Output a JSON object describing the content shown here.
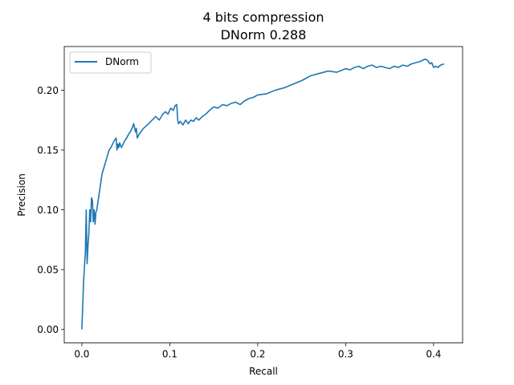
{
  "chart_data": {
    "type": "line",
    "title": "4 bits compression",
    "subtitle": "DNorm 0.288",
    "xlabel": "Recall",
    "ylabel": "Precision",
    "xlim": [
      -0.02,
      0.433
    ],
    "ylim": [
      -0.0113,
      0.2365
    ],
    "xticks": [
      0.0,
      0.1,
      0.2,
      0.3,
      0.4
    ],
    "xtick_labels": [
      "0.0",
      "0.1",
      "0.2",
      "0.3",
      "0.4"
    ],
    "yticks": [
      0.0,
      0.05,
      0.1,
      0.15,
      0.2
    ],
    "ytick_labels": [
      "0.00",
      "0.05",
      "0.10",
      "0.15",
      "0.20"
    ],
    "grid": false,
    "legend_position": "top-left",
    "series": [
      {
        "name": "DNorm",
        "color": "#1f77b4",
        "x": [
          0.0,
          0.002,
          0.004,
          0.005,
          0.006,
          0.007,
          0.008,
          0.009,
          0.01,
          0.011,
          0.012,
          0.013,
          0.014,
          0.015,
          0.016,
          0.017,
          0.019,
          0.021,
          0.023,
          0.025,
          0.027,
          0.029,
          0.031,
          0.033,
          0.035,
          0.037,
          0.039,
          0.04,
          0.041,
          0.042,
          0.043,
          0.045,
          0.047,
          0.049,
          0.051,
          0.053,
          0.055,
          0.057,
          0.059,
          0.061,
          0.062,
          0.063,
          0.065,
          0.067,
          0.07,
          0.073,
          0.076,
          0.08,
          0.084,
          0.088,
          0.092,
          0.095,
          0.098,
          0.101,
          0.104,
          0.106,
          0.108,
          0.109,
          0.11,
          0.112,
          0.115,
          0.118,
          0.121,
          0.124,
          0.127,
          0.13,
          0.133,
          0.137,
          0.141,
          0.145,
          0.15,
          0.155,
          0.16,
          0.165,
          0.17,
          0.175,
          0.18,
          0.185,
          0.19,
          0.195,
          0.2,
          0.21,
          0.22,
          0.23,
          0.24,
          0.25,
          0.26,
          0.27,
          0.28,
          0.29,
          0.3,
          0.305,
          0.31,
          0.315,
          0.32,
          0.325,
          0.33,
          0.335,
          0.34,
          0.345,
          0.35,
          0.355,
          0.36,
          0.365,
          0.37,
          0.375,
          0.38,
          0.385,
          0.39,
          0.393,
          0.396,
          0.398,
          0.4,
          0.402,
          0.405,
          0.408,
          0.412
        ],
        "y": [
          0.0,
          0.04,
          0.065,
          0.1,
          0.055,
          0.07,
          0.08,
          0.1,
          0.09,
          0.11,
          0.108,
          0.09,
          0.1,
          0.088,
          0.098,
          0.1,
          0.11,
          0.12,
          0.13,
          0.135,
          0.14,
          0.145,
          0.15,
          0.152,
          0.155,
          0.158,
          0.16,
          0.15,
          0.155,
          0.152,
          0.156,
          0.152,
          0.155,
          0.158,
          0.16,
          0.163,
          0.165,
          0.168,
          0.172,
          0.165,
          0.168,
          0.16,
          0.163,
          0.165,
          0.168,
          0.17,
          0.172,
          0.175,
          0.178,
          0.175,
          0.18,
          0.182,
          0.18,
          0.185,
          0.183,
          0.187,
          0.188,
          0.175,
          0.172,
          0.174,
          0.171,
          0.175,
          0.172,
          0.175,
          0.174,
          0.177,
          0.175,
          0.178,
          0.18,
          0.183,
          0.186,
          0.185,
          0.188,
          0.187,
          0.189,
          0.19,
          0.188,
          0.191,
          0.193,
          0.194,
          0.196,
          0.197,
          0.2,
          0.202,
          0.205,
          0.208,
          0.212,
          0.214,
          0.216,
          0.215,
          0.218,
          0.217,
          0.219,
          0.22,
          0.218,
          0.22,
          0.221,
          0.219,
          0.22,
          0.219,
          0.218,
          0.22,
          0.219,
          0.221,
          0.22,
          0.222,
          0.223,
          0.224,
          0.226,
          0.225,
          0.222,
          0.223,
          0.219,
          0.22,
          0.219,
          0.221,
          0.222
        ]
      }
    ]
  }
}
